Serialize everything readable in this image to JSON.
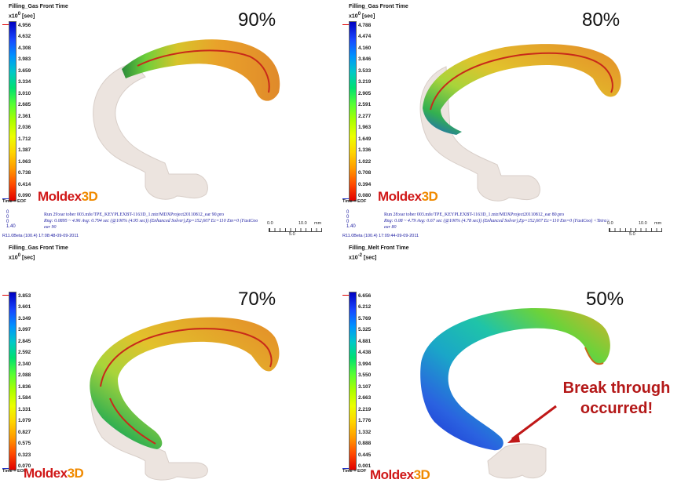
{
  "panels": [
    {
      "title": "Filling_Gas Front Time",
      "unit_base": "x10",
      "unit_exp": "0",
      "unit": "[sec]",
      "ticks": [
        "4.956",
        "4.632",
        "4.308",
        "3.983",
        "3.659",
        "3.334",
        "3.010",
        "2.685",
        "2.361",
        "2.036",
        "1.712",
        "1.387",
        "1.063",
        "0.738",
        "0.414",
        "0.090"
      ],
      "time_label": "Time = EOF",
      "brand_main": "Moldex",
      "brand_3d": "3D",
      "percent": "90%",
      "info_line1": "Run 29:ear tober 003.mfe/TPE_KEYPLEXBT-1163D_1.mtr/MDXProject20110812_ear 90.pro",
      "info_line2": "Rng: 0.0895 ~ 4.96   Avg: 0.794 sec  (@100% (4.95 sec))  (Enhanced Solver),Ep=152,607 Ec=110 Em=0 (FastCoo",
      "info_line3": "ear 90",
      "version": "R11.0Beta (100.4) 17:08:48-09-09-2011",
      "scale_left": "0.0",
      "scale_right": "10.0",
      "scale_unit": "mm",
      "scale_mid": "5.0",
      "axis_vals": [
        "0",
        "0",
        "0",
        "1.40"
      ]
    },
    {
      "title": "Filling_Gas Front Time",
      "unit_base": "x10",
      "unit_exp": "0",
      "unit": "[sec]",
      "ticks": [
        "4.788",
        "4.474",
        "4.160",
        "3.846",
        "3.533",
        "3.219",
        "2.905",
        "2.591",
        "2.277",
        "1.963",
        "1.649",
        "1.336",
        "1.022",
        "0.708",
        "0.394",
        "0.080"
      ],
      "time_label": "Time = EOF",
      "brand_main": "Moldex",
      "brand_3d": "3D",
      "percent": "80%",
      "info_line1": "Run 28:ear tober 003.mfe/TPE_KEYPLEXBT-1163D_1.mtr/MDXProject20110812_ear 80.pro",
      "info_line2": "Rng: 0.08 ~ 4.79   Avg: 0.67 sec  (@100% (4.78 sec))  (Enhanced Solver),Ep=152,607 Ec=110 Em=0 (FastCoo) <Tetra>",
      "info_line3": "ear 80",
      "version": "R11.0Beta (100.4) 17:09:44-09-09-2011",
      "scale_left": "0.0",
      "scale_right": "10.0",
      "scale_unit": "mm",
      "scale_mid": "5.0",
      "axis_vals": [
        "0",
        "0",
        "0",
        "1.40"
      ]
    },
    {
      "title": "Filling_Gas Front Time",
      "unit_base": "x10",
      "unit_exp": "0",
      "unit": "[sec]",
      "ticks": [
        "3.853",
        "3.601",
        "3.349",
        "3.097",
        "2.845",
        "2.592",
        "2.340",
        "2.088",
        "1.836",
        "1.584",
        "1.331",
        "1.079",
        "0.827",
        "0.575",
        "0.323",
        "0.070"
      ],
      "time_label": "Time = EOF",
      "brand_main": "Moldex",
      "brand_3d": "3D",
      "percent": "70%"
    },
    {
      "title": "Filling_Melt Front Time",
      "unit_base": "x10",
      "unit_exp": "-2",
      "unit": "[sec]",
      "ticks": [
        "6.656",
        "6.212",
        "5.769",
        "5.325",
        "4.881",
        "4.438",
        "3.994",
        "3.550",
        "3.107",
        "2.663",
        "2.219",
        "1.776",
        "1.332",
        "0.888",
        "0.445",
        "0.001"
      ],
      "time_label": "Time = EOF",
      "brand_main": "Moldex",
      "brand_3d": "3D",
      "percent": "50%"
    }
  ],
  "callout": {
    "line1": "Break through",
    "line2": "occurred!"
  }
}
